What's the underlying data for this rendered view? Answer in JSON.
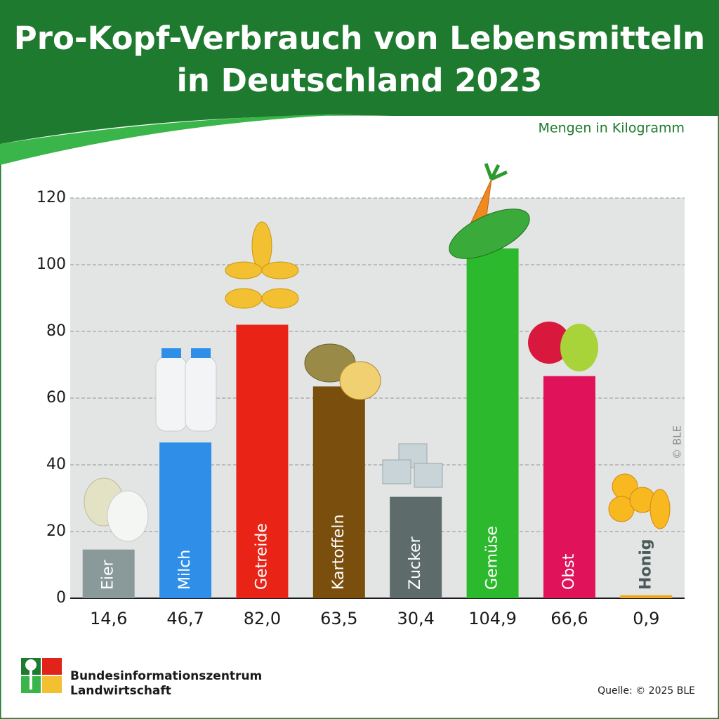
{
  "chart_data": {
    "type": "bar",
    "title": [
      "Pro-Kopf-Verbrauch von Lebensmitteln",
      "in Deutschland 2023"
    ],
    "subtitle": "Mengen in Kilogramm",
    "categories": [
      "Eier",
      "Milch",
      "Getreide",
      "Kartoffeln",
      "Zucker",
      "Gemüse",
      "Obst",
      "Honig"
    ],
    "values": [
      14.6,
      46.7,
      82.0,
      63.5,
      30.4,
      104.9,
      66.6,
      0.9
    ],
    "value_labels": [
      "14,6",
      "46,7",
      "82,0",
      "63,5",
      "30,4",
      "104,9",
      "66,6",
      "0,9"
    ],
    "colors": [
      "#8a9a9a",
      "#2f8fe8",
      "#ea2317",
      "#7a4f0d",
      "#5e6b6b",
      "#2db92d",
      "#e0125a",
      "#f0a81a"
    ],
    "ylim": [
      0,
      120
    ],
    "yticks": [
      0,
      20,
      40,
      60,
      80,
      100,
      120
    ],
    "grid": true,
    "copyright": "© BLE"
  },
  "footer": {
    "org_line1": "Bundesinformationszentrum",
    "org_line2": "Landwirtschaft",
    "source": "Quelle: © 2025 BLE"
  }
}
